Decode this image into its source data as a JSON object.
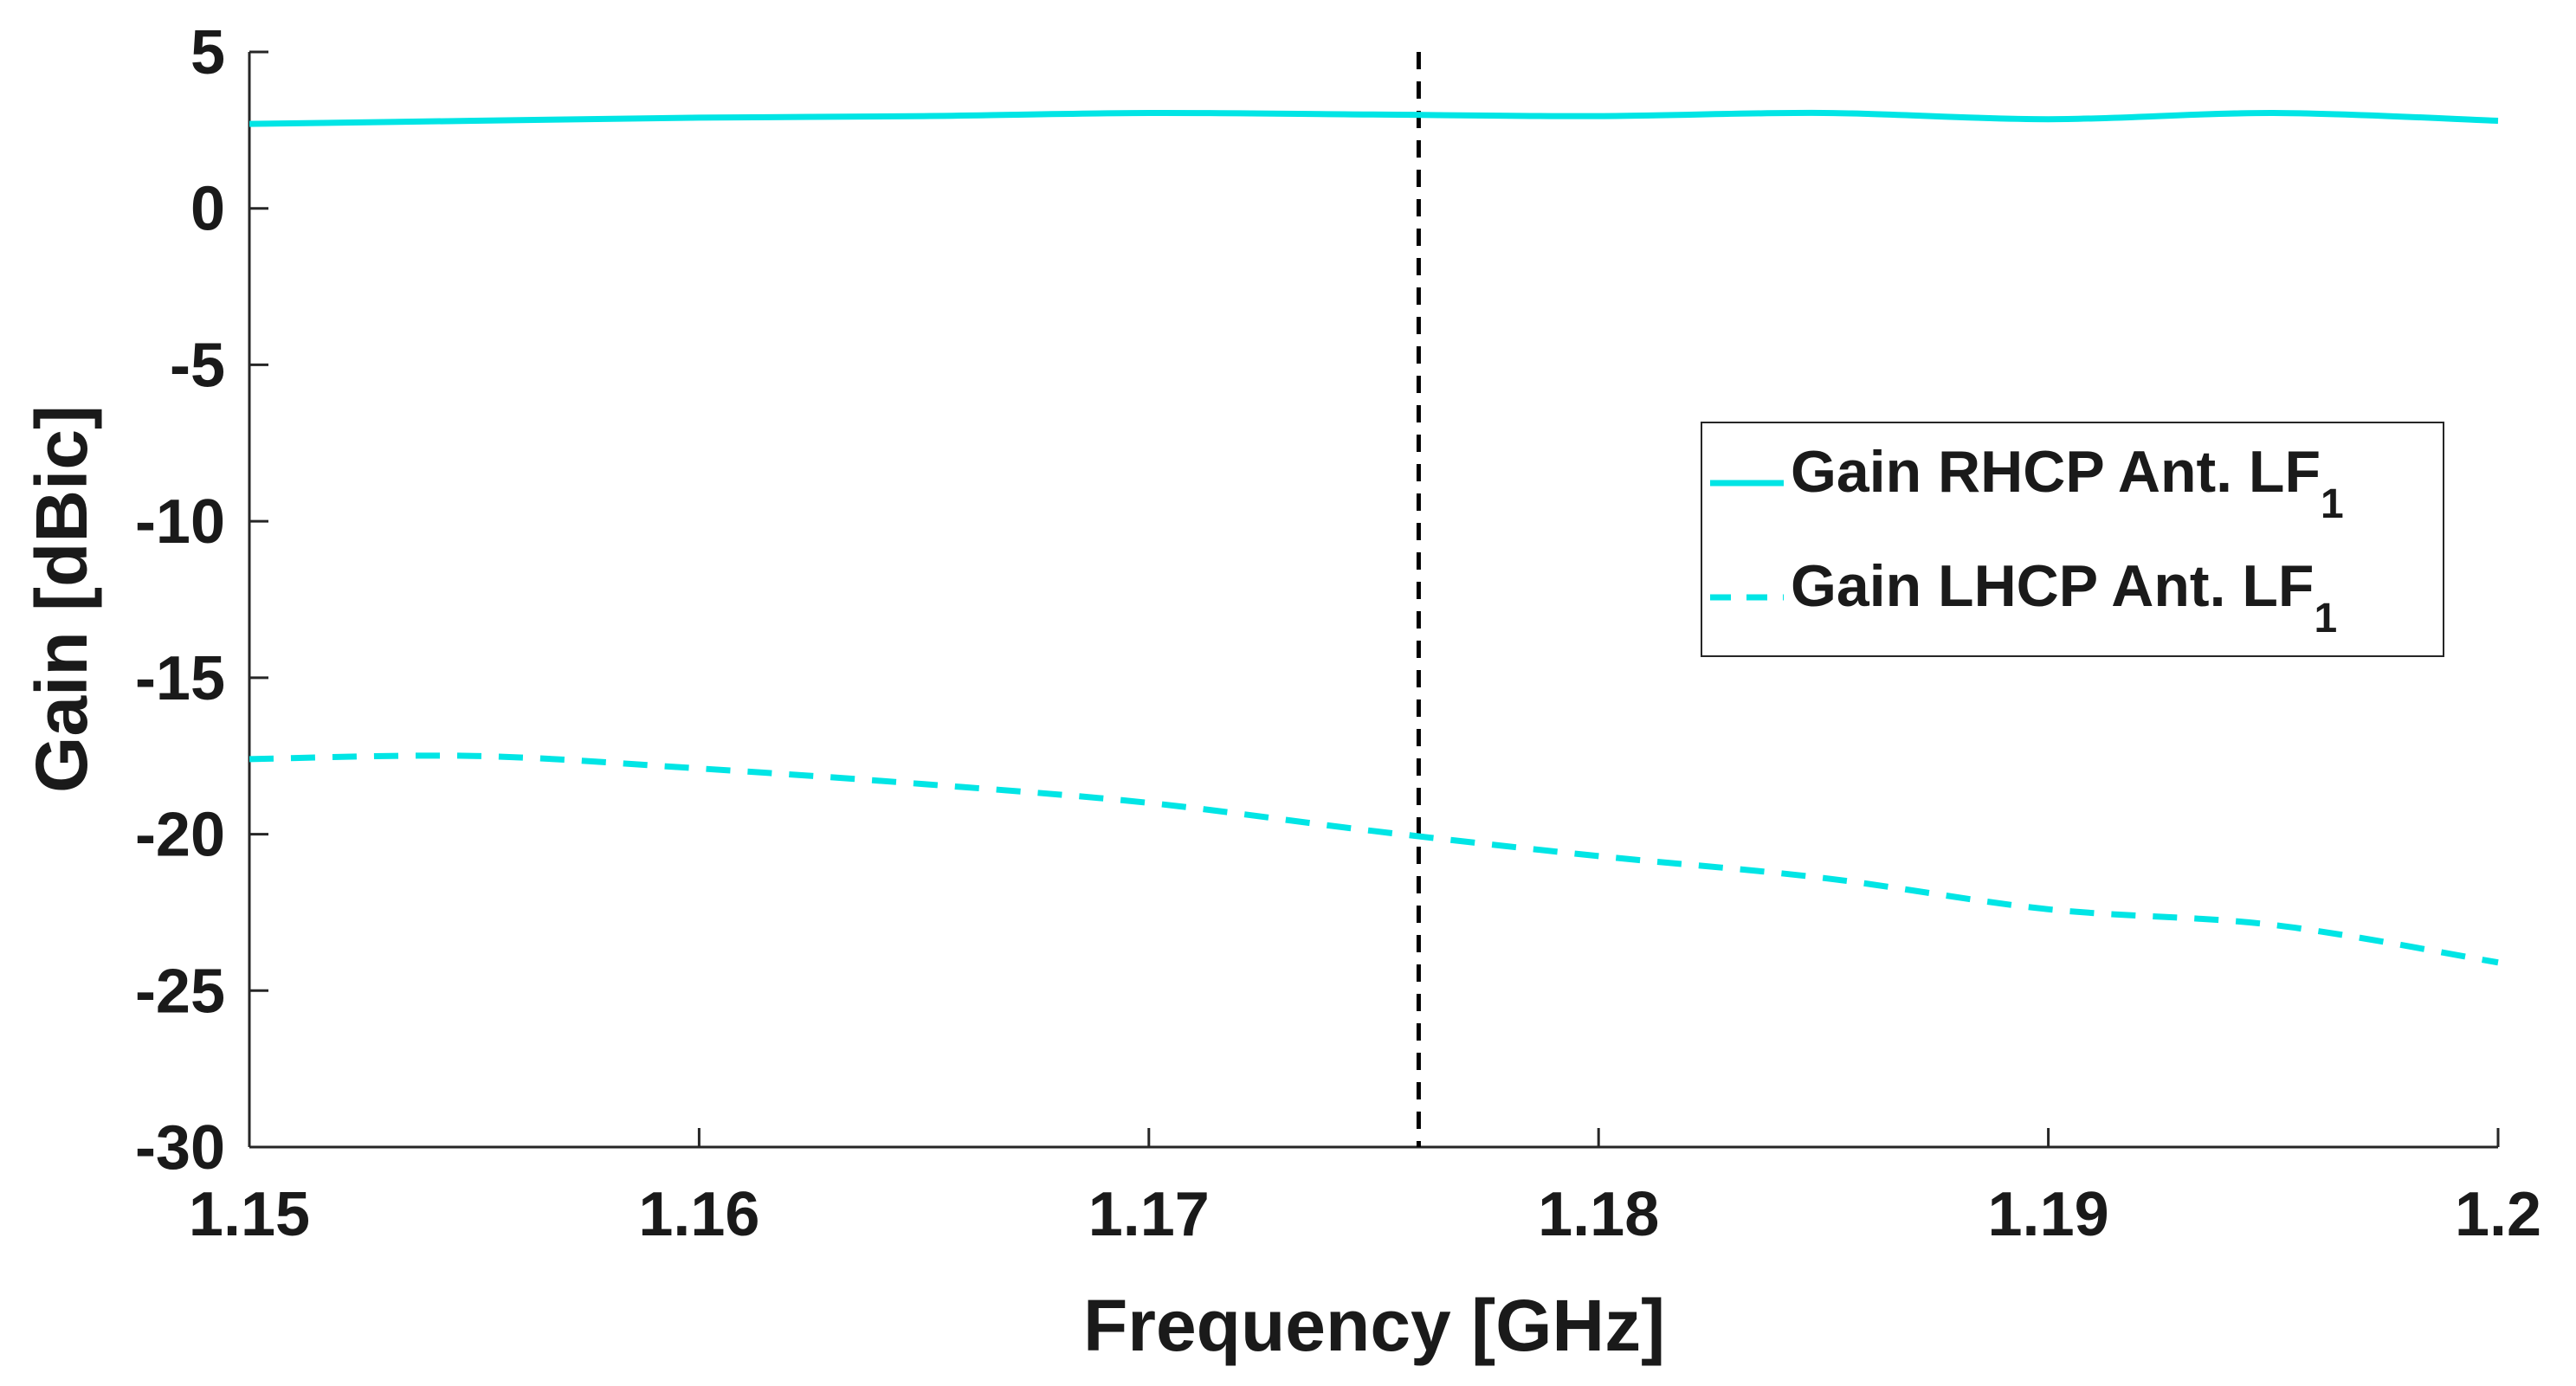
{
  "chart_data": {
    "type": "line",
    "title": "",
    "xlabel": "Frequency [GHz]",
    "ylabel": "Gain [dBic]",
    "xlim": [
      1.15,
      1.2
    ],
    "ylim": [
      -30,
      5
    ],
    "x_ticks": [
      1.15,
      1.16,
      1.17,
      1.18,
      1.19,
      1.2
    ],
    "x_tick_labels": [
      "1.15",
      "1.16",
      "1.17",
      "1.18",
      "1.19",
      "1.2"
    ],
    "y_ticks": [
      5,
      0,
      -5,
      -10,
      -15,
      -20,
      -25,
      -30
    ],
    "y_tick_labels": [
      "5",
      "0",
      "-5",
      "-10",
      "-15",
      "-20",
      "-25",
      "-30"
    ],
    "grid": false,
    "legend_position": "right",
    "marker_line": {
      "x": 1.176,
      "style": "dashed",
      "color": "#000000"
    },
    "series": [
      {
        "name": "Gain RHCP Ant. LF",
        "name_main": "Gain RHCP Ant. LF",
        "name_sub": "1",
        "style": "solid",
        "color": "#00e5e5",
        "x": [
          1.15,
          1.155,
          1.16,
          1.165,
          1.17,
          1.175,
          1.18,
          1.185,
          1.19,
          1.195,
          1.2
        ],
        "values": [
          2.7,
          2.8,
          2.9,
          2.95,
          3.05,
          3.0,
          2.95,
          3.05,
          2.85,
          3.05,
          2.8
        ]
      },
      {
        "name": "Gain LHCP Ant. LF",
        "name_main": "Gain LHCP Ant. LF",
        "name_sub": "1",
        "style": "dashed",
        "color": "#00e5e5",
        "x": [
          1.15,
          1.155,
          1.16,
          1.165,
          1.17,
          1.175,
          1.18,
          1.185,
          1.19,
          1.195,
          1.2
        ],
        "values": [
          -17.6,
          -17.5,
          -17.9,
          -18.4,
          -19.0,
          -19.9,
          -20.7,
          -21.4,
          -22.4,
          -22.9,
          -24.1
        ]
      }
    ]
  }
}
